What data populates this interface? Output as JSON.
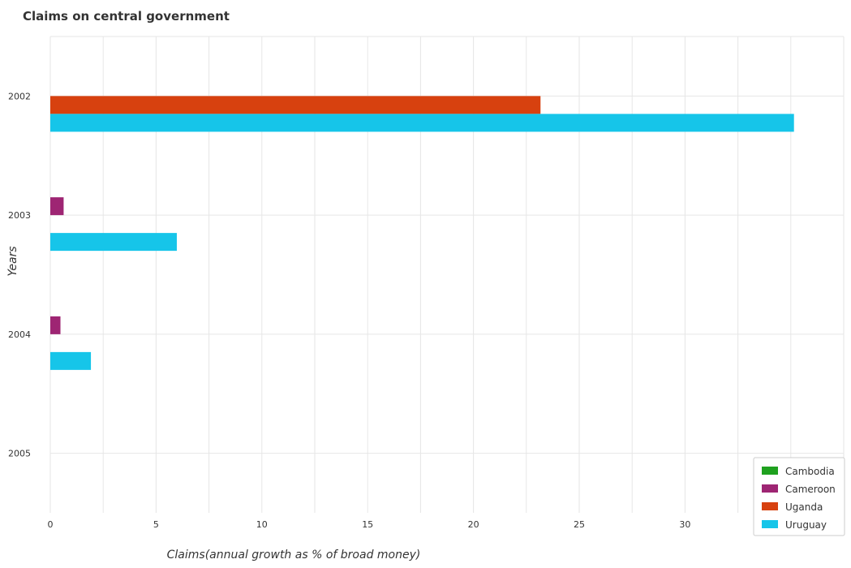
{
  "colors": {
    "Cambodia": "#1fa11f",
    "Cameroon": "#9e2573",
    "Uganda": "#d7410f",
    "Uruguay": "#16c5e9"
  },
  "chart_data": {
    "type": "bar",
    "orientation": "horizontal",
    "title": "Claims on central government",
    "xlabel": "Claims(annual growth as % of broad money)",
    "ylabel": "Years",
    "categories": [
      "2002",
      "2003",
      "2004",
      "2005"
    ],
    "xlim": [
      0,
      37.5
    ],
    "xticks": [
      0,
      5,
      10,
      15,
      20,
      25,
      30,
      35
    ],
    "grid": true,
    "legend_position": "bottom-right",
    "series": [
      {
        "name": "Cambodia",
        "values": [
          0,
          0,
          0,
          0
        ]
      },
      {
        "name": "Cameroon",
        "values": [
          0,
          0.63,
          0.48,
          0
        ]
      },
      {
        "name": "Uganda",
        "values": [
          23.17,
          0,
          0,
          0
        ]
      },
      {
        "name": "Uruguay",
        "values": [
          35.15,
          5.98,
          1.92,
          0
        ]
      }
    ]
  }
}
